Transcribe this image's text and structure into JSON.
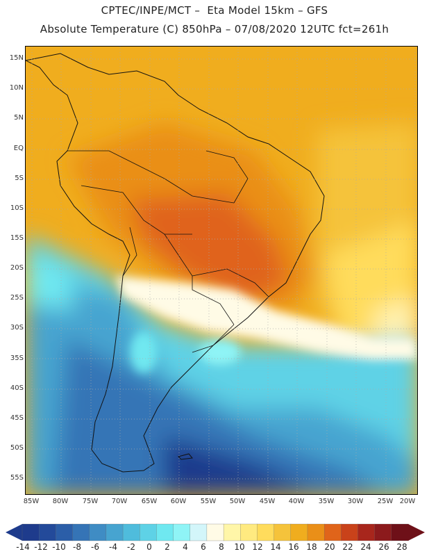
{
  "header": {
    "line1": "CPTEC/INPE/MCT –  Eta Model 15km – GFS",
    "line2": "Absolute Temperature (C) 850hPa – 07/08/2020 12UTC fct=261h"
  },
  "map": {
    "lat_labels": [
      "15N",
      "10N",
      "5N",
      "EQ",
      "5S",
      "10S",
      "15S",
      "20S",
      "25S",
      "30S",
      "35S",
      "40S",
      "45S",
      "50S",
      "55S"
    ],
    "lon_labels": [
      "85W",
      "80W",
      "75W",
      "70W",
      "65W",
      "60W",
      "55W",
      "50W",
      "45W",
      "40W",
      "35W",
      "30W",
      "25W",
      "20W"
    ]
  },
  "colorbar": {
    "labels": [
      "-14",
      "-12",
      "-10",
      "-8",
      "-6",
      "-4",
      "-2",
      "0",
      "2",
      "4",
      "6",
      "8",
      "10",
      "12",
      "14",
      "16",
      "18",
      "20",
      "22",
      "24",
      "26",
      "28"
    ],
    "colors": [
      "#1e3b8c",
      "#234a9a",
      "#2b5ea8",
      "#3574b6",
      "#3f8cc4",
      "#47a4d0",
      "#4fbcdc",
      "#5ed2e6",
      "#6fe8f0",
      "#8ff4f6",
      "#d3f6fa",
      "#fffbe6",
      "#fff6a8",
      "#ffea80",
      "#ffdc5c",
      "#f5c33b",
      "#f0ad1e",
      "#ea8f18",
      "#e0641a",
      "#c9421a",
      "#a8261c",
      "#8c1a1c",
      "#6e1018"
    ],
    "left_arrow_color": "#1e3b8c",
    "right_arrow_color": "#6e1018"
  }
}
